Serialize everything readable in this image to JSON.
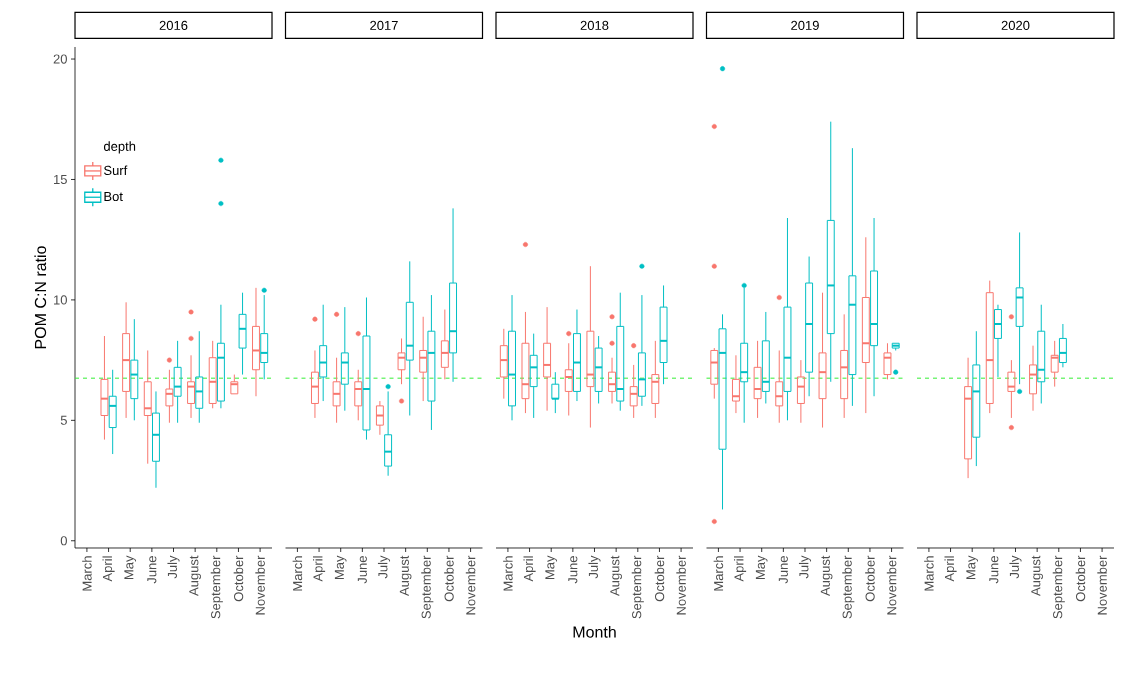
{
  "chart_data": [
    {
      "type": "box",
      "title": "2016",
      "ylabel": "POM C:N ratio",
      "legend": "top left",
      "legend_title": "depth",
      "categories": [
        "March",
        "April",
        "May",
        "June",
        "July",
        "August",
        "September",
        "October",
        "November"
      ],
      "ylim": [
        -0.3,
        20.5
      ],
      "yticks": [
        0,
        5,
        10,
        15,
        20
      ],
      "ref_lines": [
        {
          "axis": "y",
          "value": 6.75,
          "color": "#33ee33",
          "line_style": "dashed"
        }
      ],
      "series": [
        {
          "name": "Surf",
          "color": "#f8766d",
          "boxes": [
            null,
            {
              "low": 4.2,
              "q1": 5.2,
              "median": 5.9,
              "q3": 6.7,
              "high": 8.5
            },
            {
              "low": 5.1,
              "q1": 6.2,
              "median": 7.5,
              "q3": 8.6,
              "high": 9.9
            },
            {
              "low": 3.2,
              "q1": 5.2,
              "median": 5.5,
              "q3": 6.6,
              "high": 7.9
            },
            {
              "low": 4.9,
              "q1": 5.6,
              "median": 6.1,
              "q3": 6.3,
              "high": 7.1,
              "outliers": [
                7.5
              ]
            },
            {
              "low": 5.1,
              "q1": 5.7,
              "median": 6.4,
              "q3": 6.6,
              "high": 7.7,
              "outliers": [
                9.5,
                8.4
              ]
            },
            {
              "low": 5.5,
              "q1": 5.7,
              "median": 6.6,
              "q3": 7.6,
              "high": 8.3
            },
            {
              "low": 6.1,
              "q1": 6.1,
              "median": 6.5,
              "q3": 6.6,
              "high": 6.9
            },
            {
              "low": 6.0,
              "q1": 7.1,
              "median": 7.9,
              "q3": 8.9,
              "high": 10.5
            }
          ]
        },
        {
          "name": "Bot",
          "color": "#00bfc4",
          "boxes": [
            null,
            {
              "low": 3.6,
              "q1": 4.7,
              "median": 5.6,
              "q3": 6.0,
              "high": 7.1
            },
            {
              "low": 5.0,
              "q1": 5.9,
              "median": 6.9,
              "q3": 7.5,
              "high": 9.2
            },
            {
              "low": 2.2,
              "q1": 3.3,
              "median": 4.4,
              "q3": 5.3,
              "high": 6.2
            },
            {
              "low": 4.9,
              "q1": 6.0,
              "median": 6.4,
              "q3": 7.2,
              "high": 8.3
            },
            {
              "low": 4.9,
              "q1": 5.5,
              "median": 6.2,
              "q3": 6.8,
              "high": 8.7
            },
            {
              "low": 5.5,
              "q1": 5.8,
              "median": 7.6,
              "q3": 8.2,
              "high": 9.8,
              "outliers": [
                15.8,
                14.0
              ]
            },
            {
              "low": 6.9,
              "q1": 8.0,
              "median": 8.8,
              "q3": 9.4,
              "high": 10.3
            },
            {
              "low": 6.7,
              "q1": 7.4,
              "median": 7.8,
              "q3": 8.6,
              "high": 10.2,
              "outliers": [
                10.4
              ]
            }
          ]
        }
      ]
    },
    {
      "type": "box",
      "title": "2017",
      "tick_labels": "x",
      "categories": [
        "March",
        "April",
        "May",
        "June",
        "July",
        "August",
        "September",
        "October",
        "November"
      ],
      "ylim": [
        -0.3,
        20
      ],
      "yticks": [
        0,
        5,
        10,
        15,
        20
      ],
      "ref_lines": [
        {
          "axis": "y",
          "value": 6.75,
          "color": "#33ee33",
          "line_style": "dashed"
        }
      ],
      "series": [
        {
          "color": "#f8766d",
          "boxes": [
            null,
            {
              "low": 5.1,
              "q1": 5.7,
              "median": 6.4,
              "q3": 7.0,
              "high": 7.9,
              "outliers": [
                9.2
              ]
            },
            {
              "low": 4.9,
              "q1": 5.6,
              "median": 6.1,
              "q3": 6.6,
              "high": 7.6,
              "outliers": [
                9.4
              ]
            },
            {
              "low": 5.0,
              "q1": 5.6,
              "median": 6.3,
              "q3": 6.6,
              "high": 7.1,
              "outliers": [
                8.6
              ]
            },
            {
              "low": 4.4,
              "q1": 4.8,
              "median": 5.2,
              "q3": 5.6,
              "high": 5.8
            },
            {
              "low": 6.5,
              "q1": 7.1,
              "median": 7.6,
              "q3": 7.8,
              "high": 8.4,
              "outliers": [
                5.8
              ]
            },
            {
              "low": 5.8,
              "q1": 7.0,
              "median": 7.6,
              "q3": 7.9,
              "high": 9.3
            },
            {
              "low": 6.7,
              "q1": 7.2,
              "median": 7.8,
              "q3": 8.3,
              "high": 9.6
            },
            null
          ]
        },
        {
          "color": "#00bfc4",
          "boxes": [
            null,
            {
              "low": 5.8,
              "q1": 6.8,
              "median": 7.4,
              "q3": 8.1,
              "high": 9.8
            },
            {
              "low": 5.4,
              "q1": 6.5,
              "median": 7.4,
              "q3": 7.8,
              "high": 9.7
            },
            {
              "low": 4.2,
              "q1": 4.6,
              "median": 6.3,
              "q3": 8.5,
              "high": 10.1
            },
            {
              "low": 2.7,
              "q1": 3.1,
              "median": 3.7,
              "q3": 4.4,
              "high": 6.2,
              "outliers": [
                6.4
              ]
            },
            {
              "low": 5.2,
              "q1": 7.5,
              "median": 8.1,
              "q3": 9.9,
              "high": 11.6
            },
            {
              "low": 4.6,
              "q1": 5.8,
              "median": 7.8,
              "q3": 8.7,
              "high": 10.2
            },
            {
              "low": 6.6,
              "q1": 7.8,
              "median": 8.7,
              "q3": 10.7,
              "high": 13.8
            },
            null
          ]
        }
      ]
    },
    {
      "type": "box",
      "title": "2018",
      "xlabel": "Month",
      "tick_labels": "x",
      "categories": [
        "March",
        "April",
        "May",
        "June",
        "July",
        "August",
        "September",
        "October",
        "November"
      ],
      "ylim": [
        -0.3,
        20
      ],
      "yticks": [
        0,
        5,
        10,
        15,
        20
      ],
      "ref_lines": [
        {
          "axis": "y",
          "value": 6.75,
          "color": "#33ee33",
          "line_style": "dashed"
        }
      ],
      "series": [
        {
          "color": "#f8766d",
          "boxes": [
            {
              "low": 5.9,
              "q1": 6.8,
              "median": 7.5,
              "q3": 8.1,
              "high": 8.8
            },
            {
              "low": 5.3,
              "q1": 5.9,
              "median": 6.5,
              "q3": 8.2,
              "high": 9.5,
              "outliers": [
                12.3
              ]
            },
            {
              "low": 5.4,
              "q1": 6.8,
              "median": 7.3,
              "q3": 8.2,
              "high": 9.7
            },
            {
              "low": 5.2,
              "q1": 6.2,
              "median": 6.8,
              "q3": 7.1,
              "high": 8.2,
              "outliers": [
                8.6
              ]
            },
            {
              "low": 4.7,
              "q1": 6.4,
              "median": 6.9,
              "q3": 8.7,
              "high": 11.4
            },
            {
              "low": 5.7,
              "q1": 6.2,
              "median": 6.5,
              "q3": 7.0,
              "high": 7.6,
              "outliers": [
                9.3,
                8.2
              ]
            },
            {
              "low": 5.1,
              "q1": 5.6,
              "median": 6.1,
              "q3": 6.4,
              "high": 7.3,
              "outliers": [
                8.1
              ]
            },
            {
              "low": 5.1,
              "q1": 5.7,
              "median": 6.6,
              "q3": 6.9,
              "high": 8.3
            },
            null
          ]
        },
        {
          "color": "#00bfc4",
          "boxes": [
            {
              "low": 5.0,
              "q1": 5.6,
              "median": 6.9,
              "q3": 8.7,
              "high": 10.2
            },
            {
              "low": 5.1,
              "q1": 6.4,
              "median": 7.2,
              "q3": 7.7,
              "high": 8.6
            },
            {
              "low": 5.3,
              "q1": 5.9,
              "median": 5.9,
              "q3": 6.5,
              "high": 7.0
            },
            {
              "low": 5.8,
              "q1": 6.2,
              "median": 7.4,
              "q3": 8.6,
              "high": 9.6
            },
            {
              "low": 5.7,
              "q1": 6.2,
              "median": 7.2,
              "q3": 8.0,
              "high": 8.5
            },
            {
              "low": 5.4,
              "q1": 5.8,
              "median": 6.3,
              "q3": 8.9,
              "high": 10.3
            },
            {
              "low": 5.6,
              "q1": 6.0,
              "median": 6.7,
              "q3": 7.8,
              "high": 10.2,
              "outliers": [
                11.4
              ]
            },
            {
              "low": 6.5,
              "q1": 7.4,
              "median": 8.3,
              "q3": 9.7,
              "high": 10.6
            },
            null
          ]
        }
      ]
    },
    {
      "type": "box",
      "title": "2019",
      "tick_labels": "x",
      "categories": [
        "March",
        "April",
        "May",
        "June",
        "July",
        "August",
        "September",
        "October",
        "November"
      ],
      "ylim": [
        -0.3,
        20
      ],
      "yticks": [
        0,
        5,
        10,
        15,
        20
      ],
      "ref_lines": [
        {
          "axis": "y",
          "value": 6.75,
          "color": "#33ee33",
          "line_style": "dashed"
        }
      ],
      "series": [
        {
          "color": "#f8766d",
          "boxes": [
            {
              "low": 5.9,
              "q1": 6.5,
              "median": 7.4,
              "q3": 7.9,
              "high": 8.0,
              "outliers": [
                17.2,
                11.4,
                0.8
              ]
            },
            {
              "low": 5.3,
              "q1": 5.8,
              "median": 6.0,
              "q3": 6.7,
              "high": 7.7
            },
            {
              "low": 5.1,
              "q1": 5.9,
              "median": 6.3,
              "q3": 7.2,
              "high": 8.3
            },
            {
              "low": 4.9,
              "q1": 5.6,
              "median": 6.0,
              "q3": 6.6,
              "high": 7.9,
              "outliers": [
                10.1
              ]
            },
            {
              "low": 4.9,
              "q1": 5.7,
              "median": 6.4,
              "q3": 6.8,
              "high": 7.5
            },
            {
              "low": 4.7,
              "q1": 5.9,
              "median": 7.0,
              "q3": 7.8,
              "high": 10.3
            },
            {
              "low": 5.1,
              "q1": 5.9,
              "median": 7.2,
              "q3": 7.9,
              "high": 9.4
            },
            {
              "low": 5.3,
              "q1": 7.4,
              "median": 8.2,
              "q3": 10.1,
              "high": 12.6
            },
            {
              "low": 6.7,
              "q1": 6.9,
              "median": 7.6,
              "q3": 7.8,
              "high": 8.2
            }
          ]
        },
        {
          "color": "#00bfc4",
          "boxes": [
            {
              "low": 1.3,
              "q1": 3.8,
              "median": 7.8,
              "q3": 8.8,
              "high": 9.4,
              "outliers": [
                19.6
              ]
            },
            {
              "low": 4.9,
              "q1": 6.6,
              "median": 7.0,
              "q3": 8.2,
              "high": 10.5,
              "outliers": [
                10.6
              ]
            },
            {
              "low": 5.7,
              "q1": 6.2,
              "median": 6.6,
              "q3": 8.3,
              "high": 9.5
            },
            {
              "low": 5.0,
              "q1": 6.2,
              "median": 7.6,
              "q3": 9.7,
              "high": 13.4
            },
            {
              "low": 6.0,
              "q1": 7.0,
              "median": 9.0,
              "q3": 10.7,
              "high": 11.8
            },
            {
              "low": 6.6,
              "q1": 8.6,
              "median": 10.6,
              "q3": 13.3,
              "high": 17.4
            },
            {
              "low": 5.6,
              "q1": 6.9,
              "median": 9.8,
              "q3": 11.0,
              "high": 16.3
            },
            {
              "low": 6.0,
              "q1": 8.1,
              "median": 9.0,
              "q3": 11.2,
              "high": 13.4
            },
            {
              "low": 7.9,
              "q1": 8.0,
              "median": 8.1,
              "q3": 8.2,
              "high": 8.2,
              "outliers": [
                7.0
              ]
            }
          ]
        }
      ]
    },
    {
      "type": "box",
      "title": "2020",
      "tick_labels": "x",
      "categories": [
        "March",
        "April",
        "May",
        "June",
        "July",
        "August",
        "September",
        "October",
        "November"
      ],
      "ylim": [
        -0.3,
        20
      ],
      "yticks": [
        0,
        5,
        10,
        15,
        20
      ],
      "ref_lines": [
        {
          "axis": "y",
          "value": 6.75,
          "color": "#33ee33",
          "line_style": "dashed"
        }
      ],
      "series": [
        {
          "color": "#f8766d",
          "boxes": [
            null,
            null,
            {
              "low": 2.6,
              "q1": 3.4,
              "median": 5.9,
              "q3": 6.4,
              "high": 7.6
            },
            {
              "low": 5.3,
              "q1": 5.7,
              "median": 7.5,
              "q3": 10.3,
              "high": 10.8
            },
            {
              "low": 5.1,
              "q1": 6.2,
              "median": 6.4,
              "q3": 7.0,
              "high": 7.5,
              "outliers": [
                9.3,
                4.7
              ]
            },
            {
              "low": 5.4,
              "q1": 6.1,
              "median": 6.9,
              "q3": 7.3,
              "high": 8.1
            },
            {
              "low": 6.4,
              "q1": 7.0,
              "median": 7.6,
              "q3": 7.7,
              "high": 8.3
            },
            null,
            null
          ]
        },
        {
          "color": "#00bfc4",
          "boxes": [
            null,
            null,
            {
              "low": 3.1,
              "q1": 4.3,
              "median": 6.2,
              "q3": 7.3,
              "high": 8.7
            },
            {
              "low": 6.8,
              "q1": 8.4,
              "median": 9.0,
              "q3": 9.6,
              "high": 9.8
            },
            {
              "low": 6.5,
              "q1": 8.9,
              "median": 10.1,
              "q3": 10.5,
              "high": 12.8,
              "outliers": [
                6.2
              ]
            },
            {
              "low": 5.7,
              "q1": 6.6,
              "median": 7.1,
              "q3": 8.7,
              "high": 9.8
            },
            {
              "low": 7.2,
              "q1": 7.4,
              "median": 7.8,
              "q3": 8.4,
              "high": 9.0
            },
            null,
            null
          ]
        }
      ]
    }
  ]
}
